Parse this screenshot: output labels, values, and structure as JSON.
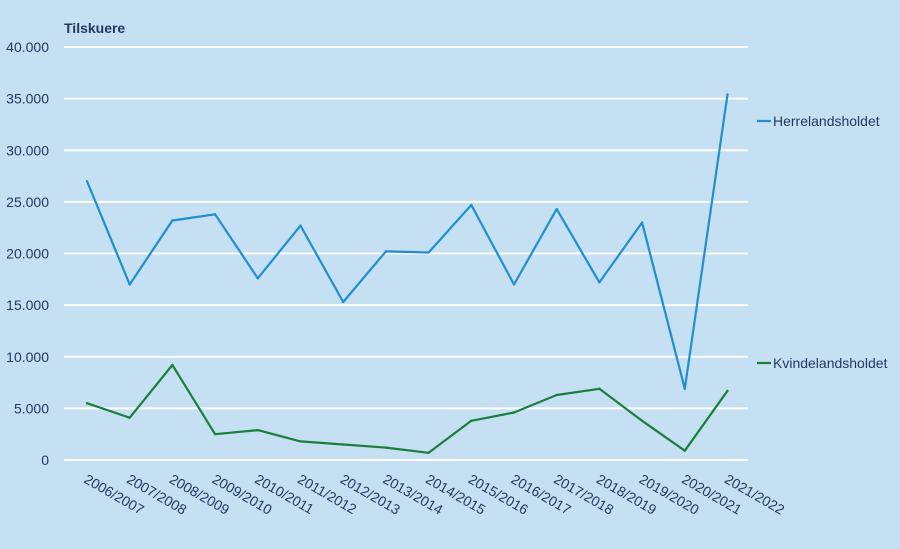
{
  "chart_data": {
    "type": "line",
    "ylabel": "Tilskuere",
    "categories": [
      "2006/2007",
      "2007/2008",
      "2008/2009",
      "2009/2010",
      "2010/2011",
      "2011/2012",
      "2012/2013",
      "2013/2014",
      "2014/2015",
      "2015/2016",
      "2016/2017",
      "2017/2018",
      "2018/2019",
      "2019/2020",
      "2020/2021",
      "2021/2022"
    ],
    "ylim": [
      0,
      40000
    ],
    "yticks": [
      0,
      5000,
      10000,
      15000,
      20000,
      25000,
      30000,
      35000,
      40000
    ],
    "ytick_labels": [
      "0",
      "5.000",
      "10.000",
      "15.000",
      "20.000",
      "25.000",
      "30.000",
      "35.000",
      "40.000"
    ],
    "grid": true,
    "legend": "right",
    "series": [
      {
        "name": "Herrelandsholdet",
        "color": "#1f8fce",
        "values": [
          27000,
          17000,
          23200,
          23800,
          17600,
          22700,
          15300,
          20200,
          20100,
          24700,
          17000,
          24300,
          17200,
          23000,
          6900,
          35400
        ]
      },
      {
        "name": "Kvindelandsholdet",
        "color": "#1a7f3c",
        "values": [
          5500,
          4100,
          9200,
          2500,
          2900,
          1800,
          1500,
          1200,
          700,
          3800,
          4600,
          6300,
          6900,
          3800,
          900,
          6700
        ]
      }
    ]
  }
}
